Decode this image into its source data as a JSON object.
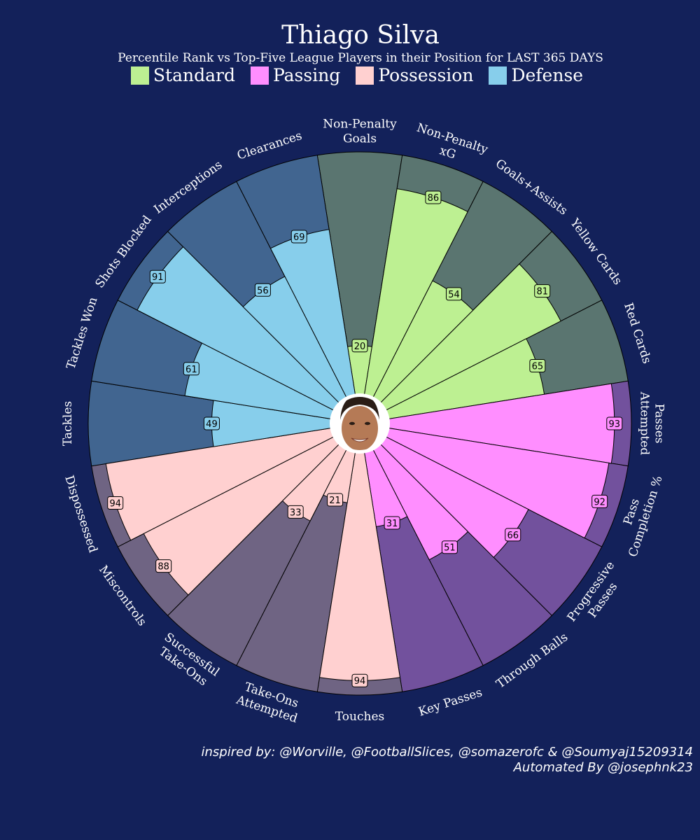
{
  "title": "Thiago Silva",
  "subtitle": "Percentile Rank vs Top-Five League Players in their Position for LAST 365 DAYS",
  "legend": [
    {
      "label": "Standard",
      "color": "#bdf092"
    },
    {
      "label": "Passing",
      "color": "#ff8eff"
    },
    {
      "label": "Possession",
      "color": "#ffd0d0"
    },
    {
      "label": "Defense",
      "color": "#87ceeb"
    }
  ],
  "credits": {
    "line1": "inspired by: @Worville, @FootballSlices, @somazerofc & @Soumyaj15209314",
    "line2": "Automated By @josephnk23"
  },
  "avatar": "player-headshot",
  "chart_data": {
    "type": "polar-bar",
    "title": "Thiago Silva",
    "subtitle": "Percentile Rank vs Top-Five League Players in their Position for LAST 365 DAYS",
    "range": [
      0,
      100
    ],
    "background_colors": {
      "Standard": "#5a7570",
      "Passing": "#72519d",
      "Possession": "#6f6483",
      "Defense": "#416590"
    },
    "bar_colors": {
      "Standard": "#bdf092",
      "Passing": "#ff8eff",
      "Possession": "#ffd0d0",
      "Defense": "#87ceeb"
    },
    "categories": [
      {
        "label": [
          "Non-Penalty",
          "Goals"
        ],
        "group": "Standard",
        "value": 20
      },
      {
        "label": [
          "Non-Penalty",
          "xG"
        ],
        "group": "Standard",
        "value": 86
      },
      {
        "label": [
          "Goals+Assists"
        ],
        "group": "Standard",
        "value": 54
      },
      {
        "label": [
          "Yellow Cards"
        ],
        "group": "Standard",
        "value": 81
      },
      {
        "label": [
          "Red Cards"
        ],
        "group": "Standard",
        "value": 65
      },
      {
        "label": [
          "Passes",
          "Attempted"
        ],
        "group": "Passing",
        "value": 93
      },
      {
        "label": [
          "Pass",
          "Completion %"
        ],
        "group": "Passing",
        "value": 92
      },
      {
        "label": [
          "Progressive",
          "Passes"
        ],
        "group": "Passing",
        "value": 66
      },
      {
        "label": [
          "Through Balls"
        ],
        "group": "Passing",
        "value": 51
      },
      {
        "label": [
          "Key Passes"
        ],
        "group": "Passing",
        "value": 31
      },
      {
        "label": [
          "Touches"
        ],
        "group": "Possession",
        "value": 94
      },
      {
        "label": [
          "Take-Ons",
          "Attempted"
        ],
        "group": "Possession",
        "value": 21
      },
      {
        "label": [
          "Successful",
          "Take-Ons"
        ],
        "group": "Possession",
        "value": 33
      },
      {
        "label": [
          "Miscontrols"
        ],
        "group": "Possession",
        "value": 88
      },
      {
        "label": [
          "Dispossessed"
        ],
        "group": "Possession",
        "value": 94
      },
      {
        "label": [
          "Tackles"
        ],
        "group": "Defense",
        "value": 49
      },
      {
        "label": [
          "Tackles Won"
        ],
        "group": "Defense",
        "value": 61
      },
      {
        "label": [
          "Shots Blocked"
        ],
        "group": "Defense",
        "value": 91
      },
      {
        "label": [
          "Interceptions"
        ],
        "group": "Defense",
        "value": 56
      },
      {
        "label": [
          "Clearances"
        ],
        "group": "Defense",
        "value": 69
      }
    ]
  }
}
